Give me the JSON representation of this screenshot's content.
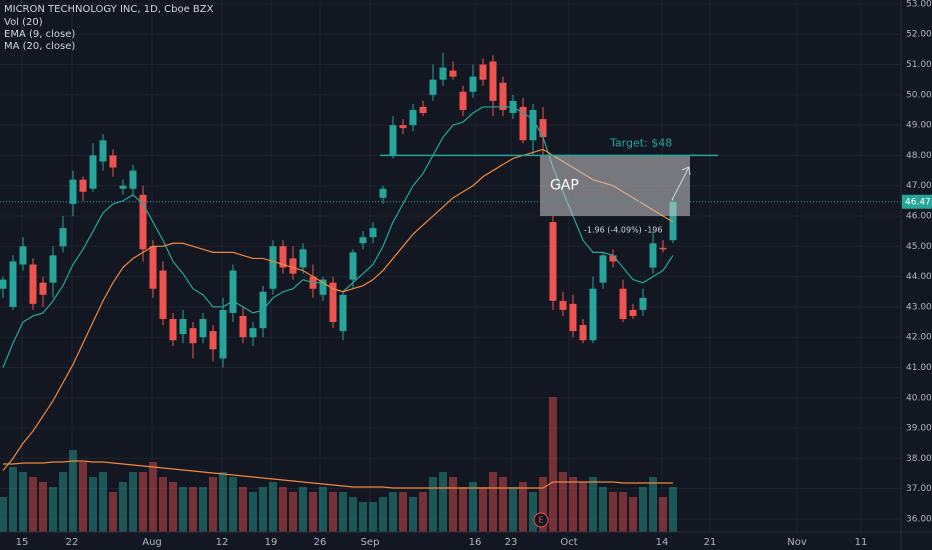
{
  "chart_data": {
    "type": "candlestick",
    "title": "MICRON TECHNOLOGY INC, 1D, Cboe BZX",
    "indicators": [
      "Vol (20)",
      "EMA (9, close)",
      "MA (20, close)"
    ],
    "x": [
      0,
      1,
      2,
      3,
      4,
      5,
      6,
      7,
      8,
      9,
      10,
      11,
      12,
      13,
      14,
      15,
      16,
      17,
      18,
      19,
      20,
      21,
      22,
      23,
      24,
      25,
      26,
      27,
      28,
      29,
      30,
      31,
      32,
      33,
      34,
      35,
      36,
      37,
      38,
      39,
      40,
      41,
      42,
      43,
      44,
      45,
      46,
      47,
      48,
      49,
      50,
      51,
      52,
      53,
      54,
      55,
      56,
      57,
      58,
      59,
      60,
      61,
      62,
      63,
      64,
      65,
      66,
      67
    ],
    "open": [
      43.6,
      43.0,
      44.4,
      44.4,
      43.8,
      43.8,
      45.0,
      46.4,
      47.2,
      46.9,
      47.8,
      48.0,
      46.9,
      46.9,
      46.7,
      45.0,
      44.2,
      42.6,
      42.1,
      42.3,
      42.0,
      42.2,
      41.3,
      42.8,
      42.7,
      42.0,
      42.3,
      43.6,
      45.0,
      44.6,
      44.3,
      44.0,
      43.4,
      43.8,
      42.2,
      43.9,
      45.1,
      45.3,
      46.6,
      48.0,
      49.0,
      49.0,
      49.6,
      50.0,
      50.5,
      50.8,
      50.1,
      50.1,
      51.0,
      51.1,
      50.4,
      49.4,
      49.6,
      48.5,
      49.2,
      45.8,
      43.2,
      43.1,
      42.4,
      41.9,
      43.8,
      44.7,
      43.6,
      42.9,
      42.9,
      44.3,
      44.95,
      45.2
    ],
    "high": [
      44.0,
      44.7,
      45.3,
      44.6,
      44.0,
      45.0,
      46.0,
      47.5,
      47.3,
      48.4,
      48.7,
      48.2,
      47.2,
      47.7,
      47.0,
      45.2,
      44.5,
      42.8,
      42.9,
      42.5,
      42.8,
      42.4,
      43.3,
      44.4,
      43.0,
      42.5,
      43.7,
      45.2,
      45.2,
      45.0,
      45.1,
      44.4,
      44.0,
      44.0,
      43.5,
      44.9,
      45.5,
      45.8,
      47.0,
      49.3,
      49.2,
      49.7,
      49.8,
      51.0,
      51.4,
      51.1,
      50.3,
      51.0,
      51.2,
      51.3,
      50.6,
      50.0,
      49.9,
      49.7,
      49.6,
      46.0,
      43.5,
      43.4,
      42.6,
      44.0,
      44.8,
      44.9,
      43.9,
      43.1,
      43.6,
      45.5,
      45.2,
      46.6
    ],
    "low": [
      43.3,
      42.9,
      44.2,
      42.9,
      43.0,
      43.3,
      44.8,
      46.0,
      46.5,
      46.8,
      47.5,
      47.3,
      46.7,
      46.7,
      44.5,
      43.3,
      42.4,
      41.7,
      41.8,
      41.3,
      41.8,
      41.2,
      41.0,
      42.5,
      41.8,
      41.7,
      42.0,
      43.4,
      44.1,
      43.9,
      44.1,
      43.3,
      43.2,
      42.3,
      41.9,
      43.6,
      44.9,
      45.1,
      46.4,
      47.9,
      48.7,
      48.8,
      49.3,
      49.8,
      50.3,
      50.5,
      49.3,
      49.9,
      50.3,
      49.3,
      49.3,
      49.2,
      48.4,
      48.0,
      48.0,
      42.9,
      42.7,
      42.0,
      41.8,
      41.8,
      43.6,
      44.3,
      42.5,
      42.6,
      42.7,
      44.1,
      44.8,
      45.1
    ],
    "close": [
      43.9,
      44.5,
      45.0,
      43.1,
      43.4,
      44.7,
      45.6,
      47.2,
      46.8,
      48.0,
      48.5,
      47.6,
      47.0,
      47.5,
      44.9,
      43.6,
      42.6,
      41.9,
      42.6,
      41.8,
      42.6,
      41.6,
      42.9,
      44.2,
      42.0,
      42.3,
      43.5,
      45.0,
      44.3,
      44.1,
      44.9,
      43.6,
      43.9,
      42.5,
      43.4,
      44.8,
      45.3,
      45.6,
      46.9,
      49.0,
      48.9,
      49.5,
      49.4,
      50.5,
      50.9,
      50.6,
      49.5,
      50.6,
      50.5,
      49.8,
      49.5,
      49.8,
      48.5,
      49.5,
      48.6,
      43.2,
      42.9,
      42.2,
      41.9,
      43.6,
      44.7,
      44.5,
      42.6,
      42.7,
      43.3,
      45.1,
      44.9,
      46.47
    ],
    "volume": [
      35,
      65,
      60,
      55,
      50,
      45,
      60,
      82,
      70,
      55,
      60,
      40,
      50,
      60,
      60,
      70,
      55,
      50,
      45,
      45,
      45,
      55,
      60,
      55,
      45,
      40,
      45,
      50,
      45,
      40,
      45,
      40,
      45,
      40,
      40,
      35,
      30,
      30,
      35,
      40,
      40,
      35,
      40,
      55,
      60,
      55,
      45,
      50,
      45,
      60,
      55,
      45,
      50,
      40,
      55,
      135,
      60,
      55,
      50,
      55,
      45,
      40,
      40,
      35,
      45,
      55,
      35,
      45
    ],
    "volume_ma": [
      68,
      68,
      69,
      69,
      69,
      70,
      70,
      71,
      71,
      70,
      70,
      69,
      68,
      67,
      66,
      65,
      64,
      63,
      62,
      61,
      60,
      59,
      58,
      57,
      56,
      55,
      54,
      53,
      52,
      51,
      50,
      49,
      48,
      47,
      46,
      45,
      45,
      45,
      45,
      44,
      44,
      44,
      44,
      44,
      44,
      44,
      44,
      44,
      44,
      44,
      44,
      44,
      44,
      44,
      44,
      50,
      50,
      50,
      50,
      50,
      50,
      50,
      49,
      49,
      49,
      49,
      49,
      49
    ],
    "ema": [
      41.0,
      41.8,
      42.5,
      42.7,
      42.8,
      43.2,
      43.7,
      44.4,
      44.9,
      45.5,
      46.1,
      46.4,
      46.5,
      46.7,
      46.4,
      45.8,
      45.2,
      44.5,
      44.1,
      43.6,
      43.4,
      43.0,
      43.0,
      43.2,
      43.0,
      42.8,
      42.9,
      43.3,
      43.5,
      43.6,
      43.9,
      43.8,
      43.8,
      43.6,
      43.5,
      43.8,
      44.1,
      44.4,
      45.0,
      45.8,
      46.4,
      47.0,
      47.4,
      48.0,
      48.6,
      49.0,
      49.1,
      49.4,
      49.6,
      49.6,
      49.6,
      49.6,
      49.4,
      49.2,
      48.6,
      47.6,
      46.8,
      46.0,
      45.2,
      44.8,
      44.8,
      44.7,
      44.3,
      43.9,
      43.8,
      44.0,
      44.2,
      44.7
    ],
    "ma": [
      37.6,
      38.0,
      38.5,
      38.9,
      39.4,
      39.9,
      40.5,
      41.1,
      41.8,
      42.5,
      43.2,
      43.8,
      44.3,
      44.6,
      44.8,
      45.0,
      45.0,
      45.1,
      45.1,
      45.0,
      44.9,
      44.8,
      44.8,
      44.8,
      44.7,
      44.6,
      44.6,
      44.5,
      44.4,
      44.3,
      44.2,
      44.0,
      43.8,
      43.6,
      43.5,
      43.6,
      43.7,
      43.9,
      44.2,
      44.6,
      45.0,
      45.4,
      45.7,
      46.0,
      46.3,
      46.6,
      46.8,
      47.0,
      47.3,
      47.5,
      47.7,
      47.9,
      48.0,
      48.1,
      48.2,
      48.0,
      47.8,
      47.6,
      47.4,
      47.2,
      47.1,
      47.0,
      46.8,
      46.6,
      46.4,
      46.2,
      46.0,
      45.8
    ],
    "up_color": "#26a69a",
    "down_color": "#ef5350",
    "ema_color": "#26a69a",
    "ma_color": "#f0883e",
    "xlim": [
      -0.3,
      89.7
    ],
    "ylim": [
      35.57,
      53.13
    ],
    "vlim": [
      0,
      532
    ],
    "xticks": [
      {
        "value": 1.9,
        "label": "15"
      },
      {
        "value": 6.9,
        "label": "22"
      },
      {
        "value": 14.9,
        "label": "Aug"
      },
      {
        "value": 21.9,
        "label": "12"
      },
      {
        "value": 26.8,
        "label": "19"
      },
      {
        "value": 31.7,
        "label": "26"
      },
      {
        "value": 36.7,
        "label": "Sep"
      },
      {
        "value": 47.2,
        "label": "16"
      },
      {
        "value": 50.8,
        "label": "23"
      },
      {
        "value": 56.6,
        "label": "Oct"
      },
      {
        "value": 65.9,
        "label": "14"
      },
      {
        "value": 70.7,
        "label": "21"
      },
      {
        "value": 79.4,
        "label": "Nov"
      },
      {
        "value": 85.8,
        "label": "11"
      }
    ],
    "yticks": [
      {
        "value": 36,
        "label": "36.00"
      },
      {
        "value": 37,
        "label": "37.00"
      },
      {
        "value": 38,
        "label": "38.00"
      },
      {
        "value": 39,
        "label": "39.00"
      },
      {
        "value": 40,
        "label": "40.00"
      },
      {
        "value": 41,
        "label": "41.00"
      },
      {
        "value": 42,
        "label": "42.00"
      },
      {
        "value": 43,
        "label": "43.00"
      },
      {
        "value": 44,
        "label": "44.00"
      },
      {
        "value": 45,
        "label": "45.00"
      },
      {
        "value": 46,
        "label": "46.00"
      },
      {
        "value": 47,
        "label": "47.00"
      },
      {
        "value": 48,
        "label": "48.00"
      },
      {
        "value": 49,
        "label": "49.00"
      },
      {
        "value": 50,
        "label": "50.00"
      },
      {
        "value": 51,
        "label": "51.00"
      },
      {
        "value": 52,
        "label": "52.00"
      },
      {
        "value": 53,
        "label": "53.00"
      }
    ],
    "grid": true,
    "last_price": {
      "value": 46.47,
      "label": "46.47"
    },
    "target": {
      "value": 48,
      "label": "Target: $48"
    },
    "gap": {
      "label": "GAP",
      "top": 48,
      "bottom": 46
    },
    "measure_label": "-1.96 (-4.09%) -196",
    "earnings_label": "E"
  }
}
